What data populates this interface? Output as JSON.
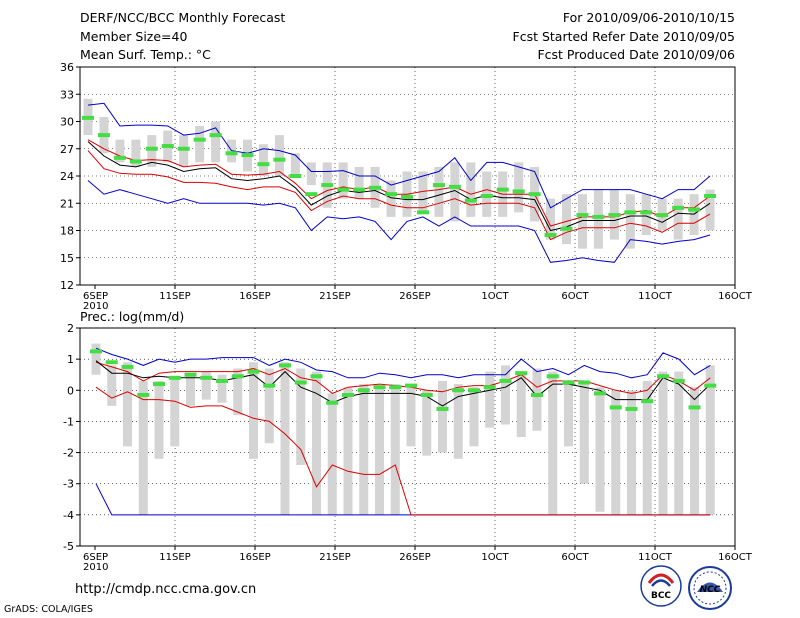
{
  "header": {
    "title": "DERF/NCC/BCC Monthly Forecast",
    "member_size": "Member Size=40",
    "variable_label": "Mean Surf. Temp.: °C",
    "period": "For 2010/09/06-2010/10/15",
    "start_date": "Fcst Started Refer Date 2010/09/05",
    "produced_date": "Fcst Produced Date 2010/09/06"
  },
  "footer": {
    "url": "http://cmdp.ncc.cma.gov.cn",
    "credit": "GrADS: COLA/IGES",
    "logo_bcc": "BCC",
    "logo_ncc": "NCC"
  },
  "colors": {
    "envelope": "#0000cc",
    "spread": "#dd0000",
    "mean": "#000000",
    "box": "#d4d4d4",
    "median": "#44dd44",
    "grid": "#000000"
  },
  "chart_data": [
    {
      "type": "boxplot-ensemble",
      "title": "",
      "ylabel": "Mean Surf. Temp.: °C",
      "ylim": [
        12,
        36
      ],
      "yticks": [
        12,
        15,
        18,
        21,
        24,
        27,
        30,
        33,
        36
      ],
      "x_days": 40,
      "xticks": [
        {
          "day": 0,
          "label": "6SEP",
          "sub": "2010"
        },
        {
          "day": 5,
          "label": "11SEP"
        },
        {
          "day": 10,
          "label": "16SEP"
        },
        {
          "day": 15,
          "label": "21SEP"
        },
        {
          "day": 20,
          "label": "26SEP"
        },
        {
          "day": 25,
          "label": "1OCT"
        },
        {
          "day": 30,
          "label": "6OCT"
        },
        {
          "day": 35,
          "label": "11OCT"
        },
        {
          "day": 40,
          "label": "16OCT"
        }
      ],
      "box_low": [
        28.5,
        26.5,
        25.5,
        25.0,
        25.0,
        25.5,
        25.0,
        25.5,
        25.5,
        25.5,
        24.5,
        24.0,
        24.0,
        24.0,
        23.0,
        20.5,
        21.5,
        21.5,
        20.5,
        19.5,
        19.5,
        20.0,
        19.5,
        19.0,
        19.5,
        19.5,
        19.5,
        20.0,
        19.0,
        17.0,
        16.5,
        16.0,
        16.0,
        17.0,
        16.0,
        17.5,
        18.0,
        17.0,
        17.5,
        18.0
      ],
      "box_high": [
        32.5,
        30.5,
        28.0,
        28.0,
        28.5,
        29.0,
        28.5,
        29.5,
        30.0,
        28.0,
        28.0,
        27.5,
        28.5,
        26.5,
        25.5,
        25.5,
        25.5,
        25.0,
        25.0,
        23.5,
        24.5,
        24.5,
        25.0,
        25.5,
        25.5,
        24.5,
        24.5,
        25.5,
        25.0,
        21.5,
        22.0,
        22.0,
        22.5,
        22.5,
        22.0,
        22.0,
        21.5,
        21.5,
        22.0,
        22.5
      ],
      "median": [
        30.4,
        28.5,
        26.0,
        25.6,
        27.0,
        27.3,
        27.0,
        28.0,
        28.5,
        26.5,
        26.3,
        25.3,
        25.8,
        24.0,
        22.0,
        23.0,
        22.5,
        22.5,
        22.7,
        22.0,
        21.7,
        20.0,
        23.0,
        22.8,
        21.3,
        21.8,
        22.5,
        22.3,
        22.0,
        17.5,
        18.2,
        19.7,
        19.5,
        19.7,
        20.0,
        20.0,
        19.7,
        20.5,
        20.3,
        21.8
      ],
      "envelope_high": [
        31.8,
        32.0,
        29.5,
        29.6,
        29.6,
        29.5,
        28.5,
        28.7,
        29.3,
        26.8,
        26.5,
        27.0,
        26.8,
        26.3,
        24.5,
        24.5,
        24.6,
        24.0,
        24.0,
        23.0,
        23.5,
        24.0,
        24.5,
        26.0,
        23.5,
        25.5,
        25.5,
        25.0,
        24.5,
        20.5,
        21.5,
        22.5,
        22.5,
        22.5,
        22.5,
        22.0,
        21.5,
        22.5,
        22.5,
        24.0
      ],
      "spread_high": [
        28.0,
        27.0,
        26.2,
        25.7,
        25.8,
        25.7,
        25.0,
        25.2,
        25.3,
        24.2,
        24.1,
        24.2,
        24.5,
        23.2,
        21.5,
        22.4,
        22.8,
        22.5,
        22.8,
        22.0,
        22.0,
        22.3,
        22.5,
        22.8,
        22.0,
        22.5,
        22.0,
        22.0,
        22.0,
        18.5,
        19.0,
        19.5,
        19.5,
        19.5,
        20.0,
        20.2,
        19.5,
        20.5,
        20.5,
        21.8
      ],
      "mean": [
        27.8,
        26.2,
        25.2,
        25.0,
        25.5,
        25.2,
        24.5,
        24.8,
        24.9,
        23.7,
        23.5,
        23.7,
        24.0,
        22.7,
        20.8,
        21.8,
        22.4,
        22.2,
        22.4,
        21.6,
        21.4,
        21.4,
        21.9,
        22.4,
        21.4,
        21.9,
        21.6,
        21.6,
        21.4,
        18.0,
        18.4,
        19.1,
        19.1,
        19.1,
        19.6,
        19.6,
        18.9,
        19.9,
        19.8,
        21.0
      ],
      "spread_low": [
        26.8,
        24.8,
        24.3,
        24.2,
        24.2,
        23.9,
        23.3,
        23.3,
        23.2,
        22.8,
        22.5,
        22.8,
        22.8,
        22.2,
        20.2,
        21.2,
        21.8,
        21.5,
        21.5,
        20.8,
        20.5,
        20.5,
        21.0,
        21.5,
        20.8,
        21.0,
        21.0,
        21.0,
        20.5,
        17.0,
        17.8,
        18.3,
        18.3,
        18.3,
        18.8,
        18.5,
        17.8,
        18.8,
        18.8,
        19.8
      ],
      "envelope_low": [
        23.5,
        22.0,
        22.5,
        22.0,
        21.5,
        21.0,
        21.5,
        21.0,
        21.0,
        21.0,
        21.0,
        20.8,
        21.0,
        20.5,
        18.0,
        19.5,
        19.3,
        19.5,
        19.0,
        17.0,
        19.0,
        19.5,
        18.5,
        19.5,
        18.5,
        18.5,
        18.5,
        18.5,
        18.0,
        14.5,
        14.7,
        15.0,
        14.7,
        14.5,
        17.0,
        16.8,
        16.5,
        16.8,
        17.0,
        17.5
      ]
    },
    {
      "type": "boxplot-ensemble",
      "title": "",
      "ylabel": "Prec.: log(mm/d)",
      "ylim": [
        -5,
        2
      ],
      "yticks": [
        -5,
        -4,
        -3,
        -2,
        -1,
        0,
        1,
        2
      ],
      "x_days": 40,
      "xticks": [
        {
          "day": 0,
          "label": "6SEP",
          "sub": "2010"
        },
        {
          "day": 5,
          "label": "11SEP"
        },
        {
          "day": 10,
          "label": "16SEP"
        },
        {
          "day": 15,
          "label": "21SEP"
        },
        {
          "day": 20,
          "label": "26SEP"
        },
        {
          "day": 25,
          "label": "1OCT"
        },
        {
          "day": 30,
          "label": "6OCT"
        },
        {
          "day": 35,
          "label": "11OCT"
        },
        {
          "day": 40,
          "label": "16OCT"
        }
      ],
      "box_low": [
        0.5,
        -0.5,
        -1.8,
        -4.0,
        -2.2,
        -1.8,
        -0.5,
        -0.3,
        -0.4,
        -0.8,
        -2.2,
        -1.7,
        -4.0,
        -2.4,
        -4.0,
        -4.0,
        -4.0,
        -4.0,
        -4.0,
        -4.0,
        -1.8,
        -2.1,
        -2.0,
        -2.2,
        -1.8,
        -1.2,
        -1.1,
        -1.5,
        -1.3,
        -4.0,
        -1.8,
        -3.0,
        -3.9,
        -4.0,
        -4.0,
        -4.0,
        -4.0,
        -4.0,
        -4.0,
        -4.0
      ],
      "box_high": [
        1.5,
        0.8,
        0.9,
        0.3,
        0.3,
        0.4,
        0.5,
        0.6,
        0.5,
        0.7,
        0.9,
        0.7,
        0.9,
        0.7,
        0.6,
        -0.1,
        0.1,
        0.2,
        0.1,
        0.2,
        0.2,
        0.0,
        0.3,
        0.2,
        0.1,
        0.6,
        0.8,
        0.5,
        0.7,
        0.6,
        0.3,
        0.3,
        0.1,
        0.0,
        0.0,
        0.3,
        0.6,
        0.6,
        0.1,
        0.8
      ],
      "median": [
        1.25,
        0.9,
        0.75,
        -0.15,
        0.2,
        0.4,
        0.5,
        0.4,
        0.3,
        0.45,
        0.6,
        0.15,
        0.8,
        0.25,
        0.45,
        -0.4,
        -0.15,
        0.0,
        0.1,
        0.1,
        0.15,
        -0.15,
        -0.6,
        0.0,
        0.0,
        0.1,
        0.3,
        0.55,
        -0.15,
        0.45,
        0.25,
        0.25,
        -0.1,
        -0.55,
        -0.6,
        -0.35,
        0.45,
        0.3,
        -0.55,
        0.15
      ],
      "envelope_high": [
        1.35,
        1.15,
        1.0,
        0.8,
        1.0,
        0.9,
        1.0,
        1.0,
        1.05,
        1.05,
        1.05,
        0.8,
        1.0,
        0.9,
        0.65,
        0.6,
        0.4,
        0.4,
        0.55,
        0.5,
        0.4,
        0.5,
        0.5,
        0.4,
        0.5,
        0.5,
        0.5,
        1.0,
        0.6,
        0.7,
        0.5,
        0.8,
        0.6,
        0.55,
        0.4,
        0.5,
        1.2,
        1.0,
        0.5,
        0.8
      ],
      "spread_high": [
        0.9,
        0.75,
        0.6,
        0.3,
        0.55,
        0.6,
        0.6,
        0.6,
        0.6,
        0.6,
        0.7,
        0.5,
        0.7,
        0.4,
        0.3,
        -0.1,
        0.1,
        0.15,
        0.2,
        0.15,
        0.1,
        0.0,
        -0.05,
        0.1,
        0.15,
        0.15,
        0.3,
        0.5,
        0.1,
        0.3,
        0.3,
        0.3,
        0.15,
        0.0,
        -0.1,
        0.0,
        0.5,
        0.3,
        0.0,
        0.4
      ],
      "mean": [
        0.95,
        0.55,
        0.55,
        0.4,
        0.45,
        0.4,
        0.4,
        0.4,
        0.3,
        0.4,
        0.5,
        0.1,
        0.6,
        0.1,
        -0.1,
        -0.4,
        -0.2,
        -0.1,
        -0.1,
        -0.1,
        -0.1,
        -0.2,
        -0.5,
        -0.2,
        -0.1,
        0.0,
        0.1,
        0.4,
        -0.2,
        0.2,
        0.2,
        0.1,
        0.0,
        -0.3,
        -0.3,
        -0.3,
        0.4,
        0.2,
        -0.3,
        0.2
      ],
      "spread_low": [
        0.1,
        -0.25,
        -0.05,
        -0.3,
        -0.3,
        -0.35,
        -0.55,
        -0.5,
        -0.5,
        -0.7,
        -0.9,
        -1.0,
        -1.4,
        -1.9,
        -3.1,
        -2.4,
        -2.6,
        -2.7,
        -2.7,
        -2.4,
        -4.0,
        -4.0,
        -4.0,
        -4.0,
        -4.0,
        -4.0,
        -4.0,
        -4.0,
        -4.0,
        -4.0,
        -4.0,
        -4.0,
        -4.0,
        -4.0,
        -4.0,
        -4.0,
        -4.0,
        -4.0,
        -4.0,
        -4.0
      ],
      "envelope_low": [
        -3.0,
        -4.0,
        -4.0,
        -4.0,
        -4.0,
        -4.0,
        -4.0,
        -4.0,
        -4.0,
        -4.0,
        -4.0,
        -4.0,
        -4.0,
        -4.0,
        -4.0,
        -4.0,
        -4.0,
        -4.0,
        -4.0,
        -4.0,
        -4.0,
        -4.0,
        -4.0,
        -4.0,
        -4.0,
        -4.0,
        -4.0,
        -4.0,
        -4.0,
        -4.0,
        -4.0,
        -4.0,
        -4.0,
        -4.0,
        -4.0,
        -4.0,
        -4.0,
        -4.0,
        -4.0,
        -4.0
      ]
    }
  ]
}
